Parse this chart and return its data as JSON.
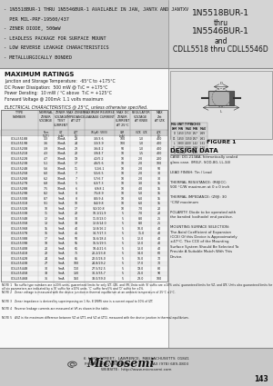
{
  "bg_color": "#c8c8c8",
  "content_bg": "#ffffff",
  "header_left_bg": "#c8c8c8",
  "header_right_bg": "#d8d8d8",
  "header_left_bullets": [
    "- 1N5518BUR-1 THRU 1N5546BUR-1 AVAILABLE IN JAN, JANTX AND JANTXV",
    "  PER MIL-PRF-19500/437",
    "- ZENER DIODE, 500mW",
    "- LEADLESS PACKAGE FOR SURFACE MOUNT",
    "- LOW REVERSE LEAKAGE CHARACTERISTICS",
    "- METALLURGICALLY BONDED"
  ],
  "header_right_lines": [
    "1N5518BUR-1",
    "thru",
    "1N5546BUR-1",
    "and",
    "CDLL5518 thru CDLL5546D"
  ],
  "max_ratings_title": "MAXIMUM RATINGS",
  "max_ratings": [
    "Junction and Storage Temperature:  -65°C to +175°C",
    "DC Power Dissipation:  500 mW @ T₀C = +175°C",
    "Power Derating:  10 mW / °C above  T₀C = +125°C",
    "Forward Voltage @ 200mA: 1.1 volts maximum"
  ],
  "elec_char_title": "ELECTRICAL CHARACTERISTICS @ 25°C, unless otherwise specified.",
  "figure1_title": "FIGURE 1",
  "design_data_title": "DESIGN DATA",
  "design_data_lines": [
    "CASE: DO-213AA, hermetically sealed",
    "glass case. (MELF, SOD-80, LL-34)",
    "",
    "LEAD FINISH: Tin / Lead",
    "",
    "THERMAL RESISTANCE: (RθJ)CC:",
    "500 °C/W maximum at 0 x 0 inch",
    "",
    "THERMAL IMPEDANCE: (ZθJ): 30",
    "°C/W maximum",
    "",
    "POLARITY: Diode to be operated with",
    "the banded (cathode) end positive.",
    "",
    "MOUNTING SURFACE SELECTION:",
    "The Axial Coefficient of Expansion",
    "(CCE) Of this Device is Approximately",
    "±47°C. The CCE of the Mounting",
    "Surface System Should Be Selected To",
    "Provide A Suitable Match With This",
    "Device."
  ],
  "table_rows": [
    [
      "CDLL5518B",
      "3.3",
      "10mA",
      "28",
      "3.0/3.6",
      "100",
      "1.0",
      "400"
    ],
    [
      "CDLL5519B",
      "3.6",
      "10mA",
      "24",
      "3.3/3.9",
      "100",
      "1.0",
      "400"
    ],
    [
      "CDLL5520B",
      "3.9",
      "10mA",
      "23",
      "3.6/4.2",
      "50",
      "1.0",
      "400"
    ],
    [
      "CDLL5521B",
      "4.3",
      "10mA",
      "22",
      "3.9/4.7",
      "10",
      "1.5",
      "400"
    ],
    [
      "CDLL5522B",
      "4.7",
      "10mA",
      "19",
      "4.2/5.2",
      "10",
      "2.0",
      "200"
    ],
    [
      "CDLL5523B",
      "5.1",
      "10mA",
      "17",
      "4.6/5.6",
      "10",
      "2.0",
      "100"
    ],
    [
      "CDLL5524B",
      "5.6",
      "10mA",
      "11",
      "5.1/6.1",
      "10",
      "2.0",
      "50"
    ],
    [
      "CDLL5525B",
      "6.0",
      "10mA",
      "7",
      "5.5/6.5",
      "10",
      "2.0",
      "30"
    ],
    [
      "CDLL5526B",
      "6.2",
      "10mA",
      "7",
      "5.7/6.7",
      "10",
      "2.0",
      "30"
    ],
    [
      "CDLL5527B",
      "6.8",
      "10mA",
      "5",
      "6.3/7.3",
      "10",
      "3.0",
      "15"
    ],
    [
      "CDLL5528B",
      "7.5",
      "10mA",
      "6",
      "6.9/8.1",
      "10",
      "4.0",
      "15"
    ],
    [
      "CDLL5529B",
      "8.2",
      "5mA",
      "8",
      "7.5/8.9",
      "10",
      "5.0",
      "15"
    ],
    [
      "CDLL5530B",
      "8.7",
      "5mA",
      "8",
      "8.0/9.4",
      "10",
      "6.0",
      "15"
    ],
    [
      "CDLL5531B",
      "9.1",
      "5mA",
      "10",
      "8.4/9.8",
      "10",
      "6.0",
      "15"
    ],
    [
      "CDLL5532B",
      "10",
      "5mA",
      "17",
      "9.2/10.8",
      "10",
      "7.0",
      "20"
    ],
    [
      "CDLL5533B",
      "11",
      "5mA",
      "22",
      "10.1/11.9",
      "5",
      "7.0",
      "20"
    ],
    [
      "CDLL5534B",
      "12",
      "5mA",
      "30",
      "11.0/13.0",
      "5",
      "8.0",
      "25"
    ],
    [
      "CDLL5535B",
      "13",
      "5mA",
      "33",
      "12.0/14.0",
      "5",
      "8.0",
      "25"
    ],
    [
      "CDLL5536B",
      "15",
      "5mA",
      "40",
      "13.8/16.2",
      "5",
      "10.0",
      "40"
    ],
    [
      "CDLL5537B",
      "16",
      "5mA",
      "45",
      "14.7/17.3",
      "5",
      "11.0",
      "40"
    ],
    [
      "CDLL5538B",
      "17",
      "5mA",
      "50",
      "15.6/18.4",
      "5",
      "12.0",
      "40"
    ],
    [
      "CDLL5539B",
      "18",
      "5mA",
      "55",
      "16.5/19.5",
      "5",
      "12.0",
      "40"
    ],
    [
      "CDLL5540B",
      "20",
      "5mA",
      "65",
      "18.4/21.6",
      "5",
      "13.0",
      "40"
    ],
    [
      "CDLL5541B",
      "22",
      "5mA",
      "75",
      "20.2/23.8",
      "5",
      "14.0",
      "60"
    ],
    [
      "CDLL5542B",
      "24",
      "5mA",
      "85",
      "22.0/26.0",
      "5",
      "16.0",
      "70"
    ],
    [
      "CDLL5543B",
      "27",
      "5mA",
      "100",
      "24.8/29.2",
      "5",
      "17.0",
      "70"
    ],
    [
      "CDLL5544B",
      "30",
      "5mA",
      "110",
      "27.5/32.5",
      "5",
      "19.0",
      "80"
    ],
    [
      "CDLL5545B",
      "33",
      "5mA",
      "130",
      "30.3/35.7",
      "5",
      "21.0",
      "90"
    ],
    [
      "CDLL5546B",
      "36",
      "5mA",
      "150",
      "33.0/39.0",
      "5",
      "23.0",
      "100"
    ]
  ],
  "col_headers_row1": [
    "TYPE",
    "NOMINAL",
    "ZENER",
    "MAX ZENER",
    "MAXIMUM REVERSE",
    "MAX DC",
    "REGULATOR",
    "MAX"
  ],
  "col_headers_row2": [
    "NUMBER",
    "ZENER",
    "VOLTAGE",
    "IMPEDANCE",
    "LEAKAGE CURRENT",
    "ZENER",
    "VOLTAGE",
    "Zzt"
  ],
  "col_headers_row3": [
    "",
    "VOLTAGE",
    "TEST",
    "AT IZT",
    "",
    "CURRENT",
    "AT KNEE",
    "AT IZK"
  ],
  "col_headers_row4": [
    "",
    "",
    "CURRENT",
    "",
    "",
    "AT 25C",
    "",
    ""
  ],
  "sub_headers": [
    "",
    "Nom VZT",
    "IZT",
    "ZZT (W)",
    "IR   VR",
    "IZM",
    "VZK   IZK",
    "ZZK (W)"
  ],
  "sub_headers2": [
    "",
    "(Note 1)",
    "(mA)",
    "",
    "(mA)  (V)",
    "(mA)",
    "",
    ""
  ],
  "notes": [
    "NOTE 1   No suffix type numbers are ±20% units; guaranteed limits for only IZT, IZK, and VR. Units with 'B' suffix are ±10% units; guaranteed limits for VZ, and IZK. Units also guaranteed limits for all six parameters are indicated by a 'B' suffix for ±10% units, 'C' suffix for±5% and 'D' suffix for ±1%.",
    "NOTE 2   Zener voltage is measured with the device junction in thermal equilibrium at an ambient temperature of 25°C ±1°C.",
    "NOTE 3   Zener impedance is derived by superimposing on 1 Hz, 8 1RMS sine is a current equal to 10% of IZT.",
    "NOTE 4   Reverse leakage currents are measured at VR as shown in the table.",
    "NOTE 5   ΔVZ is the maximum difference between VZ at IZT1 and VZ at IZT2, measured with the device junction in thermal equilibrium."
  ],
  "footer_address": "6  LAKE  STREET,  LAWRENCE,  MASSACHUSETTS  01841",
  "footer_phone": "PHONE (978) 620-2600                    FAX (978) 689-0803",
  "footer_website": "WEBSITE:  http://www.microsemi.com",
  "footer_page": "143",
  "dim_table": [
    [
      "",
      "MIL-UNIT TYPE",
      "",
      "INCHES",
      ""
    ],
    [
      "DIM",
      "MIN",
      "MAX",
      "MIN",
      "MAX"
    ],
    [
      "D",
      "1.450",
      "1.750",
      ".057",
      ".069"
    ],
    [
      "D1",
      "1.450",
      "1.550",
      ".057",
      ".061"
    ],
    [
      "L",
      "3.600",
      "4.100",
      ".142",
      ".161"
    ],
    [
      "L1",
      "2.500",
      "3.200",
      ".098",
      ".126"
    ],
    [
      "d",
      "0.500a",
      "",
      ".019",
      ""
    ]
  ]
}
